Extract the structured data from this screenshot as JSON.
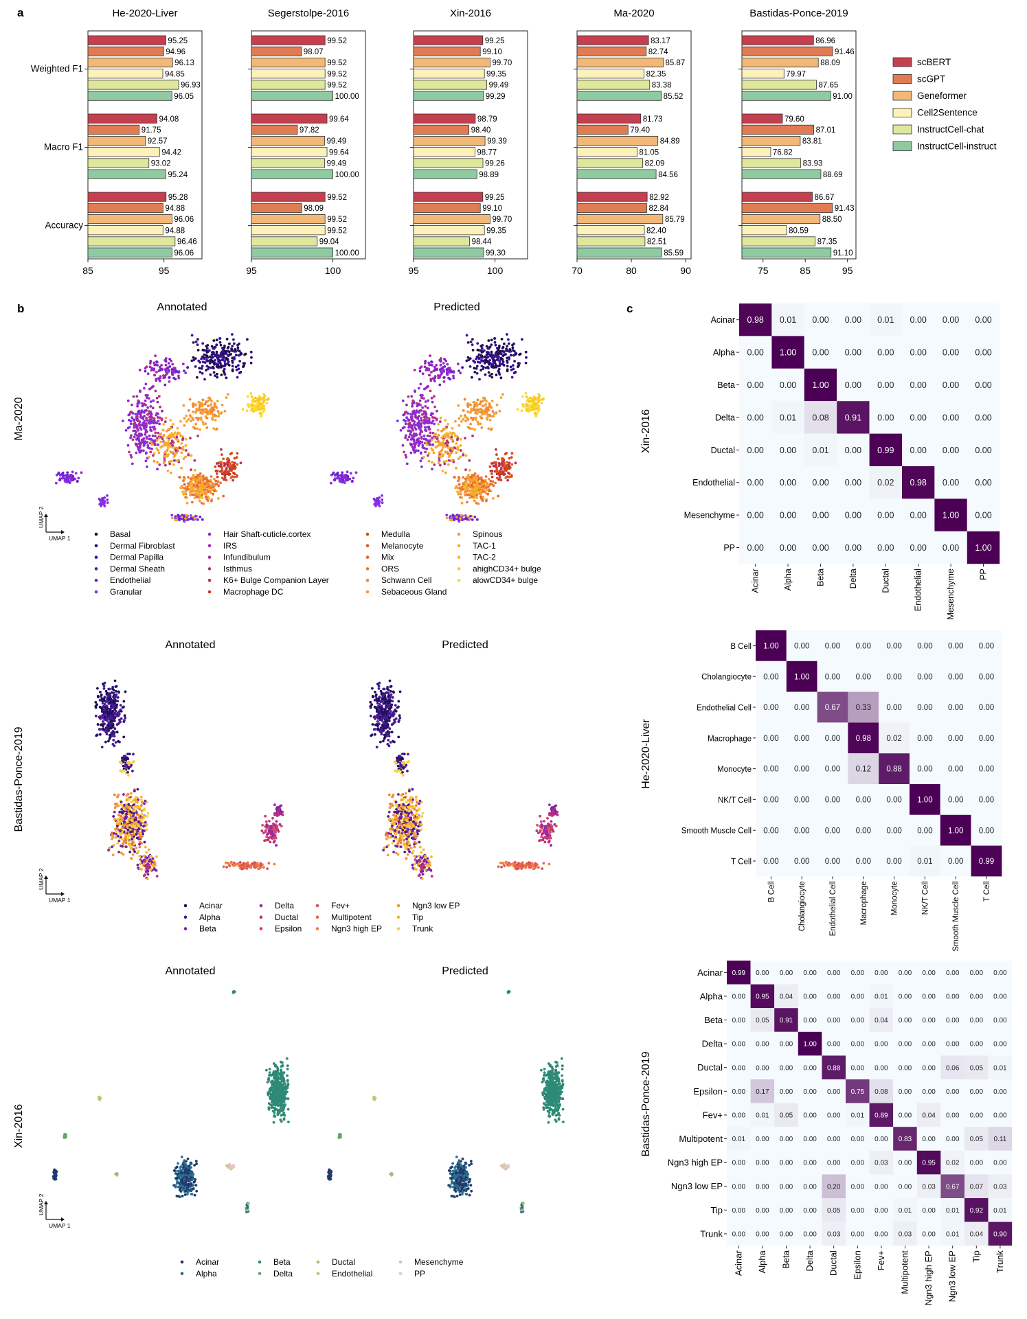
{
  "panel_letters": {
    "a": "a",
    "b": "b",
    "c": "c"
  },
  "colors": {
    "series": [
      "#c4404f",
      "#e17c52",
      "#f2b877",
      "#fbf1b9",
      "#dfe79b",
      "#8fcaa0"
    ],
    "heat_low": "#f4fafd",
    "heat_high": "#4c0055"
  },
  "chart_data": [
    {
      "type": "bar",
      "panel": "a",
      "metrics": [
        "Weighted F1",
        "Macro F1",
        "Accuracy"
      ],
      "legend": [
        "scBERT",
        "scGPT",
        "Geneformer",
        "Cell2Sentence",
        "InstructCell-chat",
        "InstructCell-instruct"
      ],
      "legend_position": "right",
      "subplots": [
        {
          "title": "He-2020-Liver",
          "xlim": [
            85,
            100
          ],
          "xticks": [
            "85",
            "95"
          ],
          "values": [
            [
              95.25,
              94.96,
              96.13,
              94.85,
              96.93,
              96.05
            ],
            [
              94.08,
              91.75,
              92.57,
              94.42,
              93.02,
              95.24
            ],
            [
              95.28,
              94.88,
              96.06,
              94.88,
              96.46,
              96.06
            ]
          ],
          "labels": [
            [
              "95.25",
              "94.96",
              "96.13",
              "94.85",
              "96.93",
              "96.05"
            ],
            [
              "94.08",
              "91.75",
              "92.57",
              "94.42",
              "93.02",
              "95.24"
            ],
            [
              "95.28",
              "94.88",
              "96.06",
              "94.88",
              "96.46",
              "96.06"
            ]
          ]
        },
        {
          "title": "Segerstolpe-2016",
          "xlim": [
            95,
            102
          ],
          "xticks": [
            "95",
            "100"
          ],
          "values": [
            [
              99.52,
              98.07,
              99.52,
              99.52,
              99.52,
              100.0
            ],
            [
              99.64,
              97.82,
              99.49,
              99.64,
              99.49,
              100.0
            ],
            [
              99.52,
              98.09,
              99.52,
              99.52,
              99.04,
              100.0
            ]
          ],
          "labels": [
            [
              "99.52",
              "98.07",
              "99.52",
              "99.52",
              "99.52",
              "100.00"
            ],
            [
              "99.64",
              "97.82",
              "99.49",
              "99.64",
              "99.49",
              "100.00"
            ],
            [
              "99.52",
              "98.09",
              "99.52",
              "99.52",
              "99.04",
              "100.00"
            ]
          ]
        },
        {
          "title": "Xin-2016",
          "xlim": [
            95,
            102
          ],
          "xticks": [
            "95",
            "100"
          ],
          "values": [
            [
              99.25,
              99.1,
              99.7,
              99.35,
              99.49,
              99.29
            ],
            [
              98.79,
              98.4,
              99.39,
              98.77,
              99.26,
              98.89
            ],
            [
              99.25,
              99.1,
              99.7,
              99.35,
              98.44,
              99.3
            ]
          ],
          "labels": [
            [
              "99.25",
              "99.10",
              "99.70",
              "99.35",
              "99.49",
              "99.29"
            ],
            [
              "98.79",
              "98.40",
              "99.39",
              "98.77",
              "99.26",
              "98.89"
            ],
            [
              "99.25",
              "99.10",
              "99.70",
              "99.35",
              "98.44",
              "99.30"
            ]
          ]
        },
        {
          "title": "Ma-2020",
          "xlim": [
            70,
            91
          ],
          "xticks": [
            "70",
            "80",
            "90"
          ],
          "values": [
            [
              83.17,
              82.74,
              85.87,
              82.35,
              83.38,
              85.52
            ],
            [
              81.73,
              79.4,
              84.89,
              81.05,
              82.09,
              84.56
            ],
            [
              82.92,
              82.84,
              85.79,
              82.4,
              82.51,
              85.59
            ]
          ],
          "labels": [
            [
              "83.17",
              "82.74",
              "85.87",
              "82.35",
              "83.38",
              "85.52"
            ],
            [
              "81.73",
              "79.40",
              "84.89",
              "81.05",
              "82.09",
              "84.56"
            ],
            [
              "82.92",
              "82.84",
              "85.79",
              "82.40",
              "82.51",
              "85.59"
            ]
          ]
        },
        {
          "title": "Bastidas-Ponce-2019",
          "xlim": [
            70,
            97
          ],
          "xticks": [
            "75",
            "85",
            "95"
          ],
          "values": [
            [
              86.96,
              91.46,
              88.09,
              79.97,
              87.65,
              91.0
            ],
            [
              79.6,
              87.01,
              83.81,
              76.82,
              83.93,
              88.69
            ],
            [
              86.67,
              91.43,
              88.5,
              80.59,
              87.35,
              91.1
            ]
          ],
          "labels": [
            [
              "86.96",
              "91.46",
              "88.09",
              "79.97",
              "87.65",
              "91.00"
            ],
            [
              "79.60",
              "87.01",
              "83.81",
              "76.82",
              "83.93",
              "88.69"
            ],
            [
              "86.67",
              "91.43",
              "88.50",
              "80.59",
              "87.35",
              "91.10"
            ]
          ]
        }
      ]
    },
    {
      "type": "scatter",
      "panel": "b",
      "dataset": "Ma-2020",
      "titles": [
        "Annotated",
        "Predicted"
      ],
      "axis_labels": [
        "UMAP 1",
        "UMAP 2"
      ],
      "legend": [
        {
          "label": "Basal",
          "color": "#1a0f3c"
        },
        {
          "label": "Dermal Fibroblast",
          "color": "#2b1170"
        },
        {
          "label": "Dermal Papilla",
          "color": "#3d10a0"
        },
        {
          "label": "Dermal Sheath",
          "color": "#5316b4"
        },
        {
          "label": "Endothelial",
          "color": "#6c1fd0"
        },
        {
          "label": "Granular",
          "color": "#8030e8"
        },
        {
          "label": "Hair Shaft-cuticle.cortex",
          "color": "#8e2bd4"
        },
        {
          "label": "IRS",
          "color": "#9b27b8"
        },
        {
          "label": "Infundibulum",
          "color": "#a52a9e"
        },
        {
          "label": "Isthmus",
          "color": "#b03286"
        },
        {
          "label": "K6+ Bulge Companion Layer",
          "color": "#bd2f4e"
        },
        {
          "label": "Macrophage DC",
          "color": "#c93a1c"
        },
        {
          "label": "Medulla",
          "color": "#d24a14"
        },
        {
          "label": "Melanocyte",
          "color": "#dc5a20"
        },
        {
          "label": "Mix",
          "color": "#e5682c"
        },
        {
          "label": "ORS",
          "color": "#ec7638"
        },
        {
          "label": "Schwann Cell",
          "color": "#ef8440"
        },
        {
          "label": "Sebaceous Gland",
          "color": "#f29250"
        },
        {
          "label": "Spinous",
          "color": "#f49a3a"
        },
        {
          "label": "TAC-1",
          "color": "#f6a82a"
        },
        {
          "label": "TAC-2",
          "color": "#f8b52a"
        },
        {
          "label": "ahighCD34+ bulge",
          "color": "#f9c82a"
        },
        {
          "label": "alowCD34+ bulge",
          "color": "#fadc2a"
        }
      ]
    },
    {
      "type": "scatter",
      "panel": "b",
      "dataset": "Bastidas-Ponce-2019",
      "titles": [
        "Annotated",
        "Predicted"
      ],
      "axis_labels": [
        "UMAP 1",
        "UMAP 2"
      ],
      "legend": [
        {
          "label": "Acinar",
          "color": "#1f1060"
        },
        {
          "label": "Alpha",
          "color": "#4a1a90"
        },
        {
          "label": "Beta",
          "color": "#7226a8"
        },
        {
          "label": "Delta",
          "color": "#9a2aa0"
        },
        {
          "label": "Ductal",
          "color": "#b8307f"
        },
        {
          "label": "Epsilon",
          "color": "#d03a70"
        },
        {
          "label": "Fev+",
          "color": "#dd4f5c"
        },
        {
          "label": "Multipotent",
          "color": "#e8684a"
        },
        {
          "label": "Ngn3 high EP",
          "color": "#f0803c"
        },
        {
          "label": "Ngn3 low EP",
          "color": "#f59a36"
        },
        {
          "label": "Tip",
          "color": "#f7b532"
        },
        {
          "label": "Trunk",
          "color": "#f9cf38"
        }
      ]
    },
    {
      "type": "scatter",
      "panel": "b",
      "dataset": "Xin-2016",
      "titles": [
        "Annotated",
        "Predicted"
      ],
      "axis_labels": [
        "UMAP 1",
        "UMAP 2"
      ],
      "legend": [
        {
          "label": "Acinar",
          "color": "#1f3a6e"
        },
        {
          "label": "Alpha",
          "color": "#2c6e8e"
        },
        {
          "label": "Beta",
          "color": "#2e8a76"
        },
        {
          "label": "Delta",
          "color": "#6aa56a"
        },
        {
          "label": "Ductal",
          "color": "#9fc07a"
        },
        {
          "label": "Endothelial",
          "color": "#c8c278"
        },
        {
          "label": "Mesenchyme",
          "color": "#d6c4a0"
        },
        {
          "label": "PP",
          "color": "#e6c8c0"
        }
      ]
    },
    {
      "type": "heatmap",
      "panel": "c",
      "dataset": "Xin-2016",
      "labels": [
        "Acinar",
        "Alpha",
        "Beta",
        "Delta",
        "Ductal",
        "Endothelial",
        "Mesenchyme",
        "PP"
      ],
      "matrix": [
        [
          0.98,
          0.01,
          0.0,
          0.0,
          0.01,
          0.0,
          0.0,
          0.0
        ],
        [
          0.0,
          1.0,
          0.0,
          0.0,
          0.0,
          0.0,
          0.0,
          0.0
        ],
        [
          0.0,
          0.0,
          1.0,
          0.0,
          0.0,
          0.0,
          0.0,
          0.0
        ],
        [
          0.0,
          0.01,
          0.08,
          0.91,
          0.0,
          0.0,
          0.0,
          0.0
        ],
        [
          0.0,
          0.0,
          0.01,
          0.0,
          0.99,
          0.0,
          0.0,
          0.0
        ],
        [
          0.0,
          0.0,
          0.0,
          0.0,
          0.02,
          0.98,
          0.0,
          0.0
        ],
        [
          0.0,
          0.0,
          0.0,
          0.0,
          0.0,
          0.0,
          1.0,
          0.0
        ],
        [
          0.0,
          0.0,
          0.0,
          0.0,
          0.0,
          0.0,
          0.0,
          1.0
        ]
      ]
    },
    {
      "type": "heatmap",
      "panel": "c",
      "dataset": "He-2020-Liver",
      "labels": [
        "B Cell",
        "Cholangiocyte",
        "Endothelial Cell",
        "Macrophage",
        "Monocyte",
        "NK/T Cell",
        "Smooth Muscle Cell",
        "T Cell"
      ],
      "matrix": [
        [
          1.0,
          0.0,
          0.0,
          0.0,
          0.0,
          0.0,
          0.0,
          0.0
        ],
        [
          0.0,
          1.0,
          0.0,
          0.0,
          0.0,
          0.0,
          0.0,
          0.0
        ],
        [
          0.0,
          0.0,
          0.67,
          0.33,
          0.0,
          0.0,
          0.0,
          0.0
        ],
        [
          0.0,
          0.0,
          0.0,
          0.98,
          0.02,
          0.0,
          0.0,
          0.0
        ],
        [
          0.0,
          0.0,
          0.0,
          0.12,
          0.88,
          0.0,
          0.0,
          0.0
        ],
        [
          0.0,
          0.0,
          0.0,
          0.0,
          0.0,
          1.0,
          0.0,
          0.0
        ],
        [
          0.0,
          0.0,
          0.0,
          0.0,
          0.0,
          0.0,
          1.0,
          0.0
        ],
        [
          0.0,
          0.0,
          0.0,
          0.0,
          0.0,
          0.01,
          0.0,
          0.99
        ]
      ]
    },
    {
      "type": "heatmap",
      "panel": "c",
      "dataset": "Bastidas-Ponce-2019",
      "labels": [
        "Acinar",
        "Alpha",
        "Beta",
        "Delta",
        "Ductal",
        "Epsilon",
        "Fev+",
        "Multipotent",
        "Ngn3 high EP",
        "Ngn3 low EP",
        "Tip",
        "Trunk"
      ],
      "matrix": [
        [
          0.99,
          0.0,
          0.0,
          0.0,
          0.0,
          0.0,
          0.0,
          0.0,
          0.0,
          0.0,
          0.0,
          0.0
        ],
        [
          0.0,
          0.95,
          0.04,
          0.0,
          0.0,
          0.0,
          0.01,
          0.0,
          0.0,
          0.0,
          0.0,
          0.0
        ],
        [
          0.0,
          0.05,
          0.91,
          0.0,
          0.0,
          0.0,
          0.04,
          0.0,
          0.0,
          0.0,
          0.0,
          0.0
        ],
        [
          0.0,
          0.0,
          0.0,
          1.0,
          0.0,
          0.0,
          0.0,
          0.0,
          0.0,
          0.0,
          0.0,
          0.0
        ],
        [
          0.0,
          0.0,
          0.0,
          0.0,
          0.88,
          0.0,
          0.0,
          0.0,
          0.0,
          0.06,
          0.05,
          0.01
        ],
        [
          0.0,
          0.17,
          0.0,
          0.0,
          0.0,
          0.75,
          0.08,
          0.0,
          0.0,
          0.0,
          0.0,
          0.0
        ],
        [
          0.0,
          0.01,
          0.05,
          0.0,
          0.0,
          0.01,
          0.89,
          0.0,
          0.04,
          0.0,
          0.0,
          0.0
        ],
        [
          0.01,
          0.0,
          0.0,
          0.0,
          0.0,
          0.0,
          0.0,
          0.83,
          0.0,
          0.0,
          0.05,
          0.11
        ],
        [
          0.0,
          0.0,
          0.0,
          0.0,
          0.0,
          0.0,
          0.03,
          0.0,
          0.95,
          0.02,
          0.0,
          0.0
        ],
        [
          0.0,
          0.0,
          0.0,
          0.0,
          0.2,
          0.0,
          0.0,
          0.0,
          0.03,
          0.67,
          0.07,
          0.03
        ],
        [
          0.0,
          0.0,
          0.0,
          0.0,
          0.05,
          0.0,
          0.0,
          0.01,
          0.0,
          0.01,
          0.92,
          0.01
        ],
        [
          0.0,
          0.0,
          0.0,
          0.0,
          0.03,
          0.0,
          0.0,
          0.03,
          0.0,
          0.01,
          0.04,
          0.9
        ]
      ]
    }
  ]
}
